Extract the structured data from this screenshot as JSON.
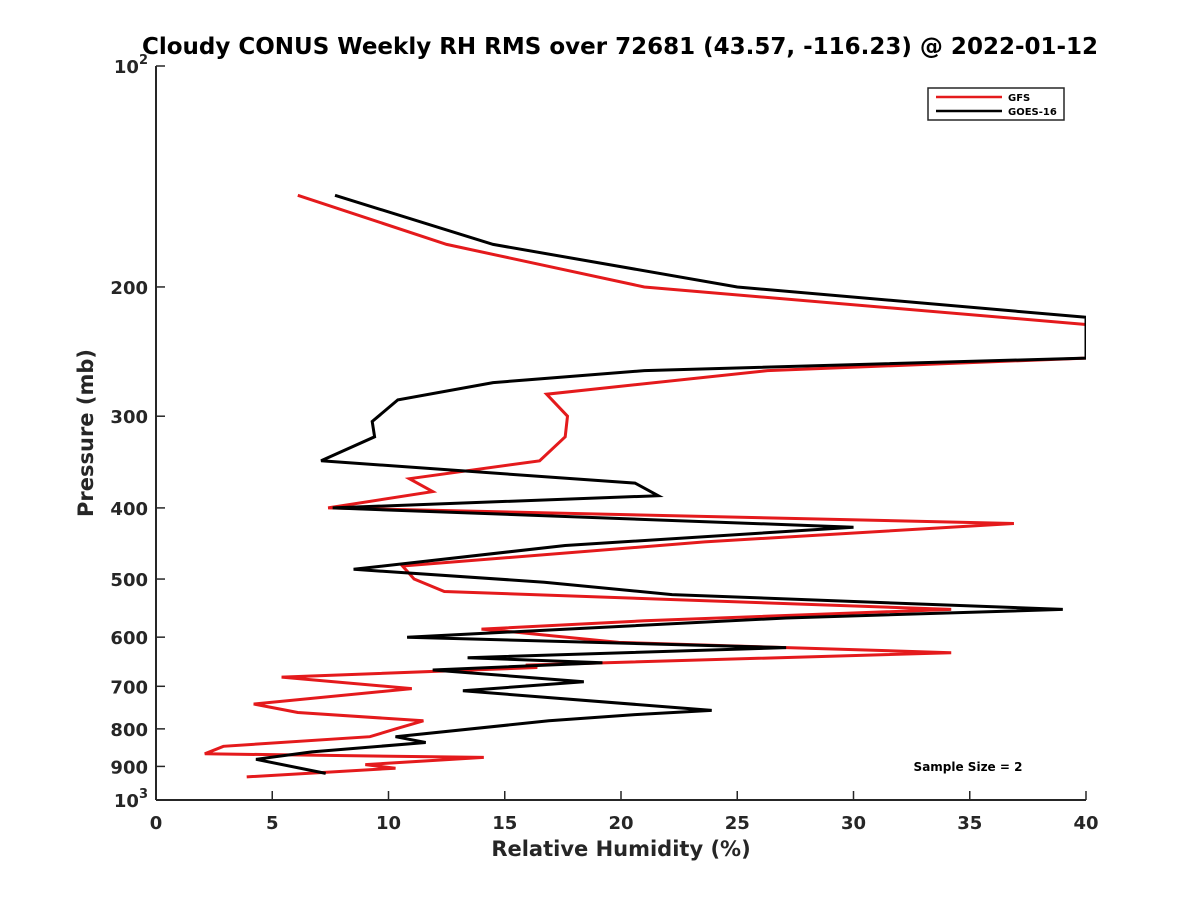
{
  "chart_data": {
    "type": "line",
    "title": "Cloudy CONUS Weekly RH RMS over 72681 (43.57, -116.23) @ 2022-01-12",
    "xlabel": "Relative Humidity (%)",
    "ylabel": "Pressure (mb)",
    "xlim": [
      0,
      40
    ],
    "ylim": [
      100,
      1000
    ],
    "y_scale": "log",
    "y_reversed": true,
    "x_ticks": [
      "0",
      "5",
      "10",
      "15",
      "20",
      "25",
      "30",
      "35",
      "40"
    ],
    "y_ticks": [
      {
        "value": 100,
        "base": "10",
        "exp": "2"
      },
      {
        "value": 200,
        "label": "200"
      },
      {
        "value": 300,
        "label": "300"
      },
      {
        "value": 400,
        "label": "400"
      },
      {
        "value": 500,
        "label": "500"
      },
      {
        "value": 600,
        "label": "600"
      },
      {
        "value": 700,
        "label": "700"
      },
      {
        "value": 800,
        "label": "800"
      },
      {
        "value": 900,
        "label": "900"
      },
      {
        "value": 1000,
        "base": "10",
        "exp": "3"
      }
    ],
    "grid": false,
    "legend_position": "top-right",
    "annotation": "Sample Size = 2",
    "series": [
      {
        "name": "GFS",
        "color": "#e41a1c",
        "points": [
          [
            6.1,
            150
          ],
          [
            12.5,
            175
          ],
          [
            21,
            200
          ],
          [
            40,
            225
          ],
          [
            40,
            250
          ],
          [
            26.3,
            260
          ],
          [
            16.8,
            280
          ],
          [
            17.7,
            300
          ],
          [
            17.6,
            320
          ],
          [
            16.5,
            345
          ],
          [
            10.9,
            365
          ],
          [
            11.9,
            380
          ],
          [
            7.4,
            400
          ],
          [
            36.9,
            420
          ],
          [
            23.6,
            445
          ],
          [
            10.6,
            480
          ],
          [
            11.1,
            500
          ],
          [
            12.4,
            520
          ],
          [
            34.2,
            550
          ],
          [
            21,
            570
          ],
          [
            14,
            585
          ],
          [
            15.3,
            590
          ],
          [
            19.9,
            610
          ],
          [
            34.2,
            630
          ],
          [
            15.9,
            655
          ],
          [
            16.4,
            660
          ],
          [
            5.4,
            680
          ],
          [
            11.0,
            705
          ],
          [
            4.2,
            740
          ],
          [
            6.1,
            760
          ],
          [
            11.5,
            780
          ],
          [
            10.3,
            800
          ],
          [
            9.2,
            820
          ],
          [
            2.9,
            845
          ],
          [
            2.1,
            865
          ],
          [
            14.1,
            875
          ],
          [
            9.0,
            895
          ],
          [
            10.3,
            905
          ],
          [
            3.9,
            930
          ]
        ]
      },
      {
        "name": "GOES-16",
        "color": "#000000",
        "points": [
          [
            7.7,
            150
          ],
          [
            14.5,
            175
          ],
          [
            25,
            200
          ],
          [
            40,
            220
          ],
          [
            40,
            250
          ],
          [
            21,
            260
          ],
          [
            14.5,
            270
          ],
          [
            10.4,
            285
          ],
          [
            9.3,
            305
          ],
          [
            9.4,
            320
          ],
          [
            7.1,
            345
          ],
          [
            20.6,
            370
          ],
          [
            21.6,
            385
          ],
          [
            7.6,
            400
          ],
          [
            30,
            425
          ],
          [
            17.6,
            450
          ],
          [
            8.5,
            485
          ],
          [
            16.7,
            505
          ],
          [
            22.2,
            525
          ],
          [
            39,
            550
          ],
          [
            27.1,
            565
          ],
          [
            10.8,
            600
          ],
          [
            27.1,
            620
          ],
          [
            13.4,
            640
          ],
          [
            19.2,
            650
          ],
          [
            11.9,
            665
          ],
          [
            18.4,
            690
          ],
          [
            13.2,
            710
          ],
          [
            23.9,
            755
          ],
          [
            20.6,
            765
          ],
          [
            16.9,
            780
          ],
          [
            10.3,
            820
          ],
          [
            11.6,
            835
          ],
          [
            6.7,
            860
          ],
          [
            4.3,
            880
          ],
          [
            7.3,
            920
          ]
        ]
      }
    ]
  }
}
